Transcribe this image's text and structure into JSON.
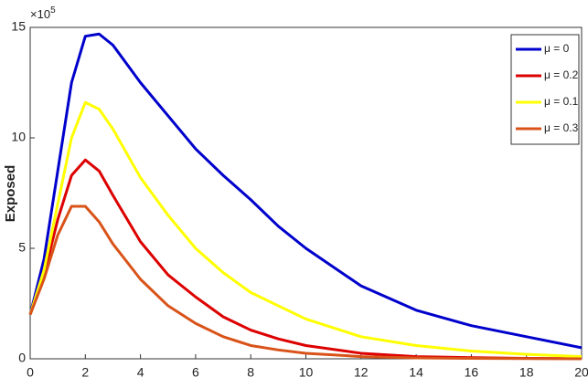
{
  "chart_data": {
    "type": "line",
    "y_label": "Exposed",
    "y_multiplier": {
      "base": "×10",
      "exponent": 5
    },
    "x": [
      0,
      0.5,
      1,
      1.5,
      2,
      2.5,
      3,
      4,
      5,
      6,
      7,
      8,
      9,
      10,
      12,
      14,
      16,
      18,
      20
    ],
    "series": [
      {
        "name": "μ = 0",
        "color": "#0000cc",
        "values": [
          2,
          4.5,
          8.5,
          12.5,
          14.6,
          14.7,
          14.2,
          12.5,
          11,
          9.5,
          8.3,
          7.2,
          6,
          5,
          3.3,
          2.2,
          1.5,
          1,
          0.5
        ]
      },
      {
        "name": "μ = 0.2",
        "color": "#dd0000",
        "values": [
          2,
          3.8,
          6.3,
          8.3,
          9,
          8.5,
          7.4,
          5.3,
          3.8,
          2.8,
          1.9,
          1.3,
          0.9,
          0.6,
          0.25,
          0.1,
          0.05,
          0.02,
          0.01
        ]
      },
      {
        "name": "μ = 0.1",
        "color": "#ffff00",
        "values": [
          2,
          4,
          7,
          10,
          11.6,
          11.3,
          10.4,
          8.2,
          6.5,
          5,
          3.9,
          3,
          2.4,
          1.8,
          1,
          0.6,
          0.35,
          0.2,
          0.1
        ]
      },
      {
        "name": "μ = 0.3",
        "color": "#d95319",
        "values": [
          2,
          3.6,
          5.6,
          6.9,
          6.9,
          6.2,
          5.2,
          3.6,
          2.4,
          1.6,
          1,
          0.6,
          0.4,
          0.25,
          0.1,
          0.04,
          0.02,
          0.01,
          0
        ]
      }
    ],
    "xlim": [
      0,
      20
    ],
    "xticks": [
      0,
      2,
      4,
      6,
      8,
      10,
      12,
      14,
      16,
      18,
      20
    ],
    "ylim": [
      0,
      15
    ],
    "yticks": [
      0,
      5,
      10,
      15
    ],
    "legend": "top-right"
  }
}
